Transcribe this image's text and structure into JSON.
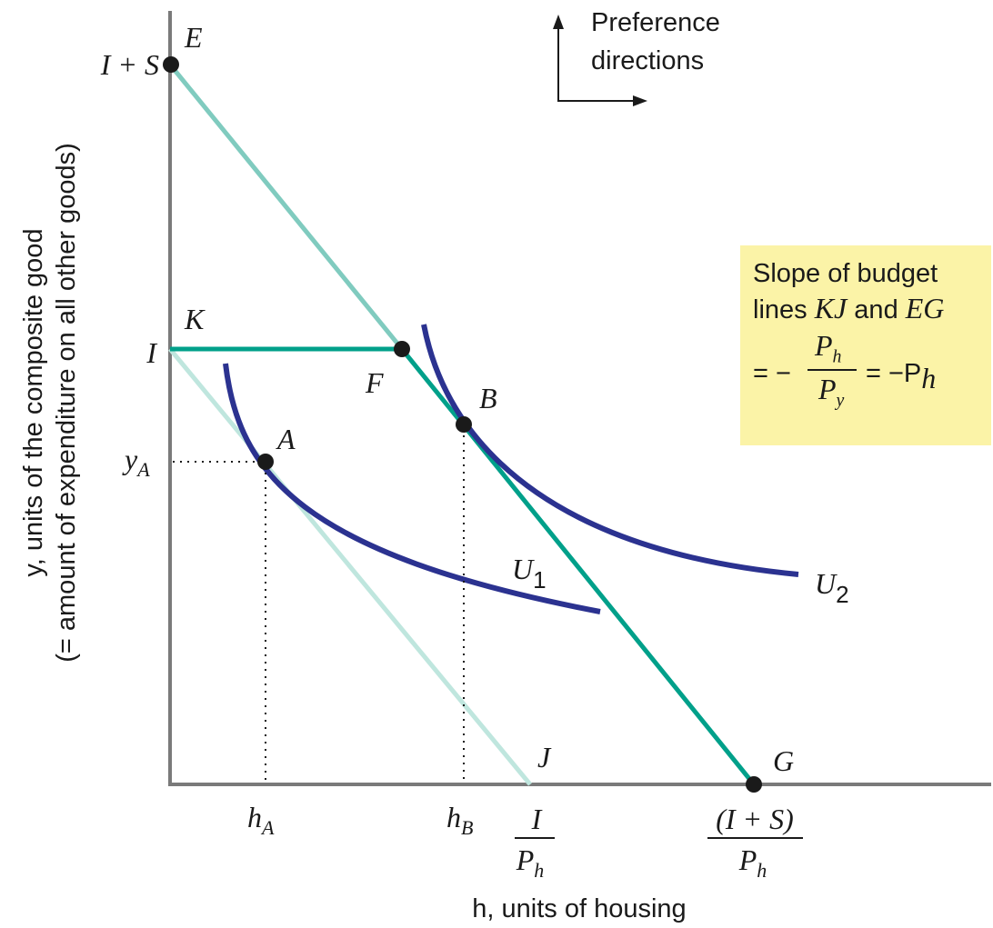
{
  "axes": {
    "y_label_line1": "y, units of the composite good",
    "y_label_line2": "(= amount of expenditure on all other goods)",
    "x_label": "h, units of housing"
  },
  "y_ticks": {
    "I_plus_S": "I + S",
    "I": "I",
    "yA": "y",
    "yA_sub": "A"
  },
  "x_ticks": {
    "hA": "h",
    "hA_sub": "A",
    "hB": "h",
    "hB_sub": "B",
    "I_over_Ph_num": "I",
    "I_over_Ph_den": "P",
    "I_over_Ph_den_sub": "h",
    "IS_over_Ph_num": "(I + S)",
    "IS_over_Ph_den": "P",
    "IS_over_Ph_den_sub": "h"
  },
  "points": {
    "E": "E",
    "K": "K",
    "F": "F",
    "A": "A",
    "B": "B",
    "J": "J",
    "G": "G"
  },
  "curves": {
    "U1": "U",
    "U1_sub": "1",
    "U2": "U",
    "U2_sub": "2"
  },
  "preference": {
    "line1": "Preference",
    "line2": "directions"
  },
  "slope_box": {
    "line1": "Slope of budget",
    "line2_prefix": "lines ",
    "line2_kj": "KJ",
    "line2_and": " and ",
    "line2_eg": "EG",
    "eq1": "= −",
    "num": "P",
    "num_sub": "h",
    "den": "P",
    "den_sub": "y",
    "eq2": "= −P",
    "eq2_sub": "h"
  },
  "colors": {
    "budget_EG": "#80cbbf",
    "budget_KFG": "#00a08a",
    "budget_IJ": "#bfe6de",
    "indifference": "#2b3290",
    "axis": "#7a7a7a",
    "slope_box_bg": "#fbf3a7"
  }
}
